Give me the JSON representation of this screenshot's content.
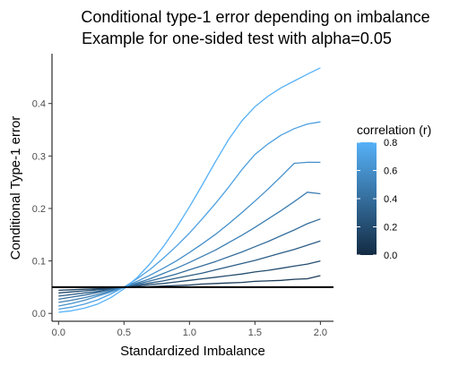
{
  "chart_data": {
    "type": "line",
    "title": "Conditional type-1 error depending on imbalance",
    "subtitle": "Example for one-sided test with alpha=0.05",
    "xlabel": "Standardized Imbalance",
    "ylabel": "Conditional Type-1 error",
    "xlim": [
      -0.05,
      2.1
    ],
    "ylim": [
      -0.015,
      0.495
    ],
    "x_ticks": [
      0.0,
      0.5,
      1.0,
      1.5,
      2.0
    ],
    "x_tick_labels": [
      "0.0",
      "0.5",
      "1.0",
      "1.5",
      "2.0"
    ],
    "y_ticks": [
      0.0,
      0.1,
      0.2,
      0.3,
      0.4
    ],
    "y_tick_labels": [
      "0.0",
      "0.1",
      "0.2",
      "0.3",
      "0.4"
    ],
    "grid": false,
    "alpha_line": {
      "y": 0.05,
      "color": "#000000"
    },
    "x": [
      0.0,
      0.1,
      0.2,
      0.3,
      0.4,
      0.5,
      0.6,
      0.7,
      0.8,
      0.9,
      1.0,
      1.1,
      1.2,
      1.3,
      1.4,
      1.5,
      1.6,
      1.7,
      1.8,
      1.9,
      2.0
    ],
    "series": [
      {
        "r": 0.1,
        "values": [
          0.044,
          0.045,
          0.046,
          0.047,
          0.048,
          0.049,
          0.05,
          0.051,
          0.052,
          0.053,
          0.054,
          0.056,
          0.057,
          0.058,
          0.059,
          0.061,
          0.062,
          0.063,
          0.065,
          0.066,
          0.072
        ]
      },
      {
        "r": 0.2,
        "values": [
          0.039,
          0.041,
          0.043,
          0.045,
          0.047,
          0.05,
          0.052,
          0.055,
          0.057,
          0.06,
          0.063,
          0.066,
          0.069,
          0.072,
          0.075,
          0.079,
          0.082,
          0.086,
          0.09,
          0.094,
          0.1
        ]
      },
      {
        "r": 0.3,
        "values": [
          0.033,
          0.036,
          0.039,
          0.042,
          0.046,
          0.05,
          0.054,
          0.058,
          0.062,
          0.067,
          0.072,
          0.077,
          0.083,
          0.089,
          0.095,
          0.101,
          0.108,
          0.115,
          0.122,
          0.13,
          0.138
        ]
      },
      {
        "r": 0.4,
        "values": [
          0.027,
          0.031,
          0.035,
          0.04,
          0.045,
          0.05,
          0.056,
          0.062,
          0.068,
          0.075,
          0.083,
          0.091,
          0.099,
          0.108,
          0.117,
          0.127,
          0.137,
          0.148,
          0.159,
          0.171,
          0.18
        ]
      },
      {
        "r": 0.5,
        "values": [
          0.021,
          0.025,
          0.03,
          0.036,
          0.043,
          0.05,
          0.058,
          0.066,
          0.076,
          0.086,
          0.097,
          0.109,
          0.121,
          0.135,
          0.149,
          0.164,
          0.18,
          0.196,
          0.213,
          0.231,
          0.228
        ]
      },
      {
        "r": 0.6,
        "values": [
          0.014,
          0.019,
          0.025,
          0.033,
          0.041,
          0.05,
          0.061,
          0.073,
          0.086,
          0.1,
          0.116,
          0.133,
          0.151,
          0.171,
          0.192,
          0.214,
          0.237,
          0.261,
          0.286,
          0.288,
          0.288
        ]
      },
      {
        "r": 0.7,
        "values": [
          0.008,
          0.012,
          0.018,
          0.026,
          0.037,
          0.05,
          0.066,
          0.084,
          0.105,
          0.128,
          0.153,
          0.181,
          0.21,
          0.241,
          0.274,
          0.303,
          0.323,
          0.34,
          0.352,
          0.361,
          0.365
        ]
      },
      {
        "r": 0.8,
        "values": [
          0.002,
          0.005,
          0.01,
          0.018,
          0.03,
          0.047,
          0.068,
          0.095,
          0.127,
          0.163,
          0.203,
          0.246,
          0.29,
          0.332,
          0.367,
          0.394,
          0.414,
          0.43,
          0.443,
          0.456,
          0.468
        ]
      }
    ],
    "legend": {
      "title": "correlation (r)",
      "placement": "right",
      "labels": [
        "0.8",
        "0.6",
        "0.4",
        "0.2",
        "0.0"
      ],
      "values": [
        0.8,
        0.6,
        0.4,
        0.2,
        0.0
      ],
      "range": [
        0.0,
        0.8
      ],
      "color_low": "#132b43",
      "color_high": "#56b1f7"
    }
  }
}
